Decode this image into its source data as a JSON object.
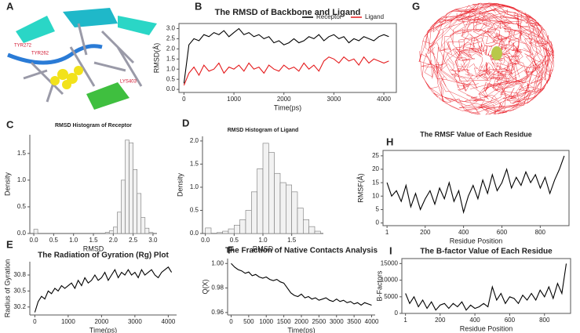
{
  "panel_labels": [
    "A",
    "G"
  ],
  "residue_labels": [
    "TYR272",
    "TYR262",
    "LYS403"
  ],
  "chart_data": [
    {
      "type": "line",
      "panel": "B",
      "title": "The RMSD of Backbone and Ligand",
      "xlabel": "Time(ps)",
      "ylabel": "RMSD(Å)",
      "x": [
        0,
        100,
        200,
        300,
        400,
        500,
        600,
        700,
        800,
        900,
        1000,
        1100,
        1200,
        1300,
        1400,
        1500,
        1600,
        1700,
        1800,
        1900,
        2000,
        2100,
        2200,
        2300,
        2400,
        2500,
        2600,
        2700,
        2800,
        2900,
        3000,
        3100,
        3200,
        3300,
        3400,
        3500,
        3600,
        3700,
        3800,
        3900,
        4000,
        4100
      ],
      "series": [
        {
          "name": "Receptor",
          "color": "#000000",
          "values": [
            0.3,
            2.2,
            2.5,
            2.4,
            2.7,
            2.6,
            2.8,
            2.7,
            2.9,
            2.6,
            2.8,
            3.0,
            2.7,
            2.8,
            2.6,
            2.7,
            2.5,
            2.6,
            2.3,
            2.4,
            2.2,
            2.3,
            2.5,
            2.3,
            2.4,
            2.6,
            2.5,
            2.7,
            2.4,
            2.6,
            2.7,
            2.5,
            2.6,
            2.3,
            2.5,
            2.4,
            2.6,
            2.5,
            2.4,
            2.6,
            2.7,
            2.6
          ]
        },
        {
          "name": "Ligand",
          "color": "#e41a1c",
          "values": [
            0.2,
            0.8,
            1.1,
            0.7,
            1.2,
            0.9,
            1.0,
            1.3,
            0.8,
            1.1,
            1.0,
            1.2,
            0.9,
            1.3,
            1.0,
            1.1,
            0.8,
            1.2,
            1.0,
            0.9,
            1.2,
            1.0,
            1.1,
            0.9,
            1.3,
            1.0,
            1.2,
            0.9,
            1.4,
            1.6,
            1.5,
            1.3,
            1.6,
            1.4,
            1.5,
            1.2,
            1.6,
            1.3,
            1.5,
            1.4,
            1.3,
            1.4
          ]
        }
      ],
      "xlim": [
        -100,
        4250
      ],
      "xticks": [
        0,
        1000,
        2000,
        3000,
        4000
      ],
      "ylim": [
        -0.15,
        3.25
      ],
      "yticks": [
        {
          "value": 0,
          "label": "0.0"
        },
        {
          "value": 0.5,
          "label": "0.5"
        },
        {
          "value": 1,
          "label": "1.0"
        },
        {
          "value": 1.5,
          "label": "1.5"
        },
        {
          "value": 2,
          "label": "2.0"
        },
        {
          "value": 2.5,
          "label": "2.5"
        },
        {
          "value": 3,
          "label": "3.0"
        }
      ],
      "legend": "top-right",
      "frame": true
    },
    {
      "type": "histogram",
      "panel": "C",
      "title": "RMSD Histogram of Receptor",
      "xlabel": "RMSD",
      "ylabel": "Density",
      "color": "#f2f2f2",
      "bins": [
        0,
        0.1,
        0.2,
        0.3,
        0.4,
        0.5,
        0.6,
        0.7,
        0.8,
        0.9,
        1.0,
        1.1,
        1.2,
        1.3,
        1.4,
        1.5,
        1.6,
        1.7,
        1.8,
        1.9,
        2.0,
        2.1,
        2.2,
        2.3,
        2.4,
        2.5,
        2.6,
        2.7,
        2.8,
        2.9,
        3.0
      ],
      "values": [
        0.08,
        0,
        0,
        0,
        0,
        0,
        0,
        0,
        0,
        0,
        0,
        0,
        0,
        0,
        0,
        0,
        0,
        0,
        0.02,
        0.05,
        0.12,
        0.4,
        1.0,
        1.75,
        1.7,
        1.2,
        0.75,
        0.3,
        0.1,
        0.02
      ],
      "xlim": [
        -0.1,
        3.1
      ],
      "xticks": [
        {
          "value": 0,
          "label": "0.0"
        },
        0.5,
        {
          "value": 1,
          "label": "1.0"
        },
        1.5,
        {
          "value": 2,
          "label": "2.0"
        },
        2.5,
        {
          "value": 3,
          "label": "3.0"
        }
      ],
      "ylim": [
        0,
        1.85
      ],
      "yticks": [
        {
          "value": 0,
          "label": "0.0"
        },
        0.5,
        {
          "value": 1,
          "label": "1.0"
        },
        1.5
      ]
    },
    {
      "type": "histogram",
      "panel": "D",
      "title": "RMSD Histogram of Ligand",
      "xlabel": "RMSD",
      "ylabel": "Density",
      "color": "#f2f2f2",
      "bins": [
        0,
        0.1,
        0.2,
        0.3,
        0.4,
        0.5,
        0.6,
        0.7,
        0.8,
        0.9,
        1.0,
        1.1,
        1.2,
        1.3,
        1.4,
        1.5,
        1.6,
        1.7,
        1.8,
        1.9,
        2.0
      ],
      "values": [
        0.12,
        0,
        0.02,
        0.05,
        0.1,
        0.18,
        0.3,
        0.5,
        0.9,
        1.4,
        1.95,
        1.75,
        1.3,
        1.1,
        1.05,
        0.9,
        0.55,
        0.3,
        0.15,
        0.05
      ],
      "xlim": [
        -0.05,
        2.05
      ],
      "xticks": [
        {
          "value": 0,
          "label": "0.0"
        },
        0.5,
        {
          "value": 1,
          "label": "1.0"
        },
        1.5
      ],
      "ylim": [
        0,
        2.1
      ],
      "yticks": [
        {
          "value": 0,
          "label": "0.0"
        },
        0.5,
        {
          "value": 1,
          "label": "1.0"
        },
        1.5,
        {
          "value": 2,
          "label": "2.0"
        }
      ]
    },
    {
      "type": "line",
      "panel": "H",
      "title": "The RMSF Value of Each Residue",
      "xlabel": "Residue Position",
      "ylabel": "RMSF(Å)",
      "x": [
        1,
        25,
        50,
        75,
        100,
        125,
        150,
        175,
        200,
        225,
        250,
        275,
        300,
        325,
        350,
        375,
        400,
        425,
        450,
        475,
        500,
        525,
        550,
        575,
        600,
        625,
        650,
        675,
        700,
        725,
        750,
        775,
        800,
        825,
        850,
        875,
        900,
        925
      ],
      "series": [
        {
          "name": "RMSF",
          "color": "#000000",
          "values": [
            15,
            10,
            12,
            8,
            14,
            6,
            11,
            5,
            9,
            12,
            7,
            13,
            9,
            15,
            8,
            12,
            4,
            10,
            14,
            9,
            16,
            11,
            18,
            12,
            15,
            20,
            13,
            17,
            14,
            19,
            15,
            18,
            13,
            17,
            11,
            16,
            20,
            25
          ]
        }
      ],
      "xlim": [
        -20,
        950
      ],
      "xticks": [
        1,
        200,
        400,
        600,
        800
      ],
      "ylim": [
        -1,
        27
      ],
      "yticks": [
        0,
        5,
        10,
        15,
        20,
        25
      ],
      "frame": true
    },
    {
      "type": "line",
      "panel": "E",
      "title": "The Radiation of Gyration (Rg) Plot",
      "xlabel": "Time(ps)",
      "ylabel": "Radius of Gyration",
      "x": [
        0,
        100,
        200,
        300,
        400,
        500,
        600,
        700,
        800,
        900,
        1000,
        1100,
        1200,
        1300,
        1400,
        1500,
        1600,
        1700,
        1800,
        1900,
        2000,
        2100,
        2200,
        2300,
        2400,
        2500,
        2600,
        2700,
        2800,
        2900,
        3000,
        3100,
        3200,
        3300,
        3400,
        3500,
        3600,
        3700,
        3800,
        3900,
        4000,
        4100
      ],
      "series": [
        {
          "name": "Rg",
          "color": "#000000",
          "values": [
            30.1,
            30.3,
            30.4,
            30.35,
            30.5,
            30.45,
            30.55,
            30.5,
            30.6,
            30.55,
            30.6,
            30.65,
            30.55,
            30.7,
            30.6,
            30.75,
            30.65,
            30.7,
            30.8,
            30.7,
            30.75,
            30.85,
            30.7,
            30.8,
            30.9,
            30.75,
            30.85,
            30.8,
            30.9,
            30.8,
            30.85,
            30.75,
            30.9,
            30.8,
            30.85,
            30.9,
            30.8,
            30.75,
            30.85,
            30.9,
            30.95,
            30.85
          ]
        }
      ],
      "xlim": [
        -150,
        4250
      ],
      "xticks": [
        0,
        1000,
        2000,
        3000,
        4000
      ],
      "ylim": [
        30.05,
        31.05
      ],
      "yticks": [
        30.2,
        30.5,
        30.8
      ]
    },
    {
      "type": "line",
      "panel": "F",
      "title": "The Fraction of Native Contacts Analysis",
      "xlabel": "Time(ps)",
      "ylabel": "Q(X)",
      "x": [
        0,
        100,
        200,
        300,
        400,
        500,
        600,
        700,
        800,
        900,
        1000,
        1100,
        1200,
        1300,
        1400,
        1500,
        1600,
        1700,
        1800,
        1900,
        2000,
        2100,
        2200,
        2300,
        2400,
        2500,
        2600,
        2700,
        2800,
        2900,
        3000,
        3100,
        3200,
        3300,
        3400,
        3500,
        3600,
        3700,
        3800,
        3900,
        4000
      ],
      "series": [
        {
          "name": "Q(X)",
          "color": "#000000",
          "values": [
            1.0,
            0.997,
            0.995,
            0.994,
            0.992,
            0.993,
            0.99,
            0.991,
            0.989,
            0.988,
            0.989,
            0.987,
            0.986,
            0.987,
            0.985,
            0.984,
            0.98,
            0.976,
            0.974,
            0.973,
            0.975,
            0.972,
            0.973,
            0.971,
            0.972,
            0.97,
            0.971,
            0.972,
            0.97,
            0.969,
            0.971,
            0.969,
            0.97,
            0.968,
            0.969,
            0.967,
            0.968,
            0.966,
            0.968,
            0.967,
            0.966
          ]
        }
      ],
      "xlim": [
        -100,
        4100
      ],
      "xticks": [
        0,
        500,
        1000,
        1500,
        2000,
        2500,
        3000,
        3500,
        4000
      ],
      "ylim": [
        0.958,
        1.004
      ],
      "yticks": [
        0.96,
        0.98,
        {
          "value": 1,
          "label": "1.00"
        }
      ]
    },
    {
      "type": "line",
      "panel": "I",
      "title": "The B-factor Value of Each Residue",
      "xlabel": "Residue Position",
      "ylabel": "B-Factors",
      "x": [
        1,
        25,
        50,
        75,
        100,
        125,
        150,
        175,
        200,
        225,
        250,
        275,
        300,
        325,
        350,
        375,
        400,
        425,
        450,
        475,
        500,
        525,
        550,
        575,
        600,
        625,
        650,
        675,
        700,
        725,
        750,
        775,
        800,
        825,
        850,
        875,
        900,
        925
      ],
      "series": [
        {
          "name": "B-factor",
          "color": "#000000",
          "values": [
            6000,
            3000,
            5000,
            2000,
            4000,
            1500,
            3500,
            1000,
            2500,
            3000,
            1500,
            3000,
            2000,
            3500,
            1000,
            2500,
            1500,
            2000,
            3000,
            2000,
            8000,
            4000,
            6000,
            3000,
            5000,
            4500,
            3000,
            5500,
            4000,
            6000,
            4000,
            7000,
            5000,
            8000,
            4500,
            9000,
            6000,
            15000
          ]
        }
      ],
      "xlim": [
        -20,
        950
      ],
      "xticks": [
        1,
        200,
        400,
        600,
        800
      ],
      "ylim": [
        0,
        16500
      ],
      "yticks": [
        0,
        5000,
        10000,
        15000
      ],
      "frame": true
    }
  ]
}
